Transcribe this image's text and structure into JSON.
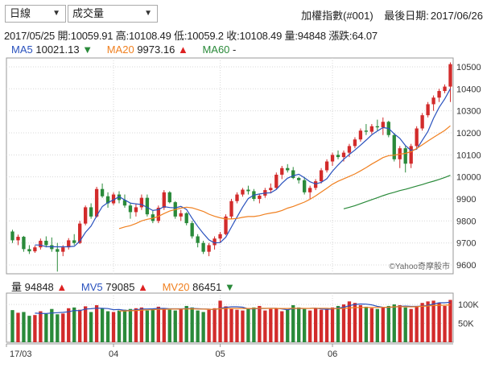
{
  "controls": {
    "period_select": "日線",
    "indicator_select": "成交量"
  },
  "header": {
    "index_name": "加權指數(#001)",
    "last_date_label": "最後日期:",
    "last_date": "2017/06/26"
  },
  "ohlc": {
    "date": "2017/05/25",
    "open_label": "開:",
    "open": "10059.91",
    "high_label": "高:",
    "high": "10108.49",
    "low_label": "低:",
    "low": "10059.2",
    "close_label": "收:",
    "close": "10108.49",
    "volume_label": "量:",
    "volume": "94848",
    "change_label": "漲跌:",
    "change": "64.07"
  },
  "ma_legend": {
    "ma5_label": "MA5",
    "ma5_value": "10021.13",
    "ma5_dir": "▼",
    "ma5_color": "#2a52be",
    "ma20_label": "MA20",
    "ma20_value": "9973.16",
    "ma20_dir": "▲",
    "ma20_color": "#f08020",
    "ma60_label": "MA60",
    "ma60_value": "-",
    "ma60_color": "#2a8a3a"
  },
  "volume_legend": {
    "vol_label": "量",
    "vol_value": "94848",
    "vol_dir": "▲",
    "mv5_label": "MV5",
    "mv5_value": "79085",
    "mv5_dir": "▲",
    "mv20_label": "MV20",
    "mv20_value": "86451",
    "mv20_dir": "▼"
  },
  "watermark": "©Yahoo奇摩股市",
  "colors": {
    "up": "#d22b2b",
    "down": "#2a8a3a",
    "grid": "#d8d8d8"
  },
  "chart_data": {
    "type": "candlestick",
    "price_axis": {
      "ticks": [
        9600,
        9700,
        9800,
        9900,
        10000,
        10100,
        10200,
        10300,
        10400,
        10500
      ],
      "ylim": [
        9560,
        10540
      ]
    },
    "volume_axis": {
      "ticks": [
        "50K",
        "100K"
      ],
      "tick_values": [
        50000,
        100000
      ],
      "ylim": [
        0,
        130000
      ]
    },
    "x_labels": [
      "17/03",
      "04",
      "05",
      "06"
    ],
    "x_label_index": [
      0,
      18,
      37,
      57
    ],
    "candles": [
      [
        9752,
        9760,
        9700,
        9712
      ],
      [
        9712,
        9738,
        9690,
        9728
      ],
      [
        9728,
        9732,
        9660,
        9672
      ],
      [
        9672,
        9690,
        9650,
        9662
      ],
      [
        9662,
        9688,
        9655,
        9680
      ],
      [
        9680,
        9720,
        9670,
        9710
      ],
      [
        9710,
        9730,
        9680,
        9690
      ],
      [
        9690,
        9725,
        9660,
        9672
      ],
      [
        9672,
        9700,
        9570,
        9660
      ],
      [
        9660,
        9690,
        9640,
        9680
      ],
      [
        9680,
        9722,
        9670,
        9712
      ],
      [
        9712,
        9740,
        9690,
        9700
      ],
      [
        9700,
        9800,
        9695,
        9788
      ],
      [
        9788,
        9870,
        9780,
        9862
      ],
      [
        9862,
        9880,
        9810,
        9820
      ],
      [
        9820,
        9955,
        9815,
        9945
      ],
      [
        9945,
        9970,
        9905,
        9912
      ],
      [
        9912,
        9930,
        9860,
        9880
      ],
      [
        9880,
        9930,
        9872,
        9920
      ],
      [
        9920,
        9935,
        9880,
        9895
      ],
      [
        9895,
        9920,
        9860,
        9870
      ],
      [
        9870,
        9880,
        9810,
        9840
      ],
      [
        9840,
        9880,
        9820,
        9862
      ],
      [
        9862,
        9920,
        9850,
        9905
      ],
      [
        9905,
        9920,
        9820,
        9830
      ],
      [
        9830,
        9845,
        9790,
        9800
      ],
      [
        9800,
        9870,
        9790,
        9860
      ],
      [
        9860,
        9940,
        9850,
        9930
      ],
      [
        9930,
        9935,
        9880,
        9885
      ],
      [
        9885,
        9890,
        9810,
        9820
      ],
      [
        9820,
        9850,
        9800,
        9835
      ],
      [
        9835,
        9840,
        9780,
        9790
      ],
      [
        9790,
        9800,
        9720,
        9730
      ],
      [
        9730,
        9740,
        9680,
        9700
      ],
      [
        9700,
        9710,
        9650,
        9660
      ],
      [
        9660,
        9700,
        9640,
        9690
      ],
      [
        9690,
        9730,
        9670,
        9720
      ],
      [
        9720,
        9750,
        9700,
        9740
      ],
      [
        9740,
        9830,
        9735,
        9820
      ],
      [
        9820,
        9900,
        9810,
        9890
      ],
      [
        9890,
        9930,
        9880,
        9920
      ],
      [
        9920,
        9950,
        9910,
        9942
      ],
      [
        9942,
        9960,
        9920,
        9935
      ],
      [
        9935,
        9945,
        9890,
        9900
      ],
      [
        9900,
        9920,
        9880,
        9915
      ],
      [
        9915,
        9950,
        9905,
        9940
      ],
      [
        9940,
        9970,
        9925,
        9950
      ],
      [
        9950,
        10020,
        9945,
        10010
      ],
      [
        10010,
        10050,
        9990,
        10040
      ],
      [
        10040,
        10058,
        10020,
        10030
      ],
      [
        10030,
        10045,
        9990,
        9995
      ],
      [
        9995,
        10000,
        9970,
        9985
      ],
      [
        9985,
        10000,
        9920,
        9930
      ],
      [
        9930,
        9960,
        9900,
        9950
      ],
      [
        9950,
        9990,
        9940,
        9980
      ],
      [
        9980,
        10040,
        9970,
        10030
      ],
      [
        10030,
        10080,
        10020,
        10070
      ],
      [
        10070,
        10110,
        10050,
        10100
      ],
      [
        10100,
        10120,
        10080,
        10090
      ],
      [
        10090,
        10120,
        10070,
        10110
      ],
      [
        10110,
        10150,
        10090,
        10140
      ],
      [
        10140,
        10180,
        10130,
        10170
      ],
      [
        10170,
        10220,
        10160,
        10210
      ],
      [
        10210,
        10240,
        10190,
        10205
      ],
      [
        10205,
        10240,
        10195,
        10230
      ],
      [
        10230,
        10260,
        10210,
        10225
      ],
      [
        10225,
        10270,
        10190,
        10250
      ],
      [
        10250,
        10255,
        10180,
        10190
      ],
      [
        10190,
        10200,
        10070,
        10080
      ],
      [
        10080,
        10140,
        10040,
        10130
      ],
      [
        10130,
        10140,
        10020,
        10060
      ],
      [
        10060,
        10150,
        10040,
        10140
      ],
      [
        10140,
        10230,
        10130,
        10220
      ],
      [
        10220,
        10290,
        10210,
        10280
      ],
      [
        10280,
        10340,
        10270,
        10330
      ],
      [
        10330,
        10370,
        10300,
        10360
      ],
      [
        10360,
        10400,
        10340,
        10390
      ],
      [
        10390,
        10420,
        10380,
        10410
      ],
      [
        10410,
        10520,
        10340,
        10512
      ]
    ],
    "volumes": [
      85,
      78,
      80,
      70,
      72,
      82,
      75,
      88,
      74,
      76,
      90,
      92,
      86,
      95,
      80,
      98,
      90,
      82,
      80,
      84,
      86,
      88,
      90,
      92,
      84,
      88,
      94,
      90,
      86,
      84,
      88,
      96,
      92,
      84,
      80,
      86,
      90,
      110,
      95,
      88,
      86,
      84,
      90,
      92,
      96,
      84,
      88,
      90,
      82,
      86,
      98,
      92,
      88,
      84,
      90,
      86,
      88,
      92,
      96,
      100,
      108,
      104,
      98,
      94,
      90,
      88,
      92,
      96,
      100,
      98,
      92,
      88,
      96,
      104,
      108,
      110,
      104,
      96,
      112
    ]
  }
}
